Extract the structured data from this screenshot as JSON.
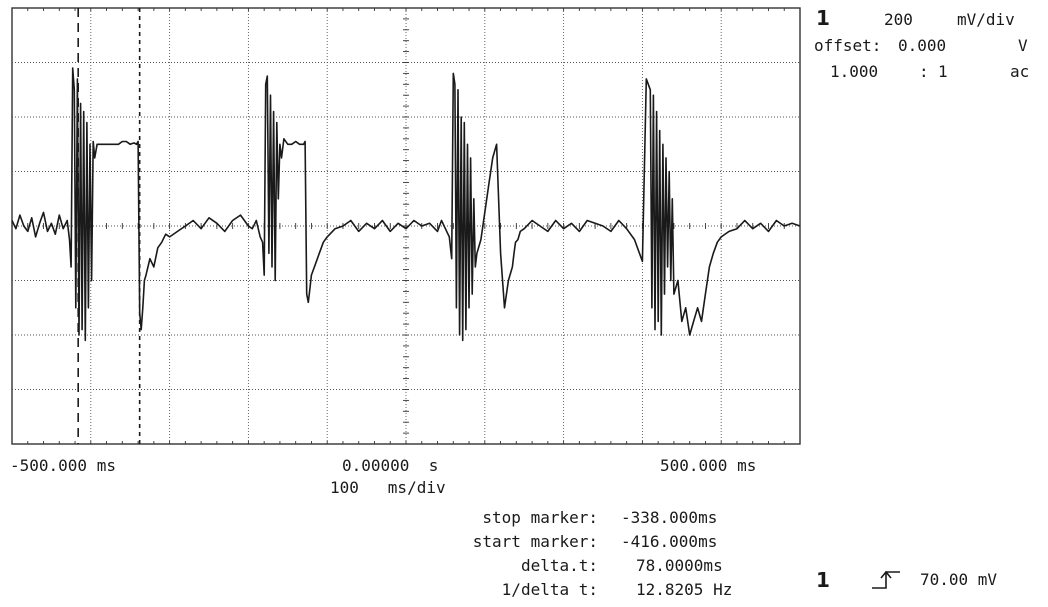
{
  "channel": {
    "number": "1",
    "scale": "200",
    "scale_unit": "mV/div",
    "offset_label": "offset:",
    "offset_value": "0.000",
    "offset_unit": "V",
    "probe_ratio": "1.000",
    "probe_sep": ":",
    "probe_ratio_to": "1",
    "coupling": "ac"
  },
  "timebase": {
    "left_label": "-500.000 ms",
    "center_label": "0.00000  s",
    "right_label": "500.000 ms",
    "per_div": "100   ms/div"
  },
  "markers": {
    "stop_label": "stop marker:",
    "stop_value": "-338.000ms",
    "start_label": "start marker:",
    "start_value": "-416.000ms",
    "delta_label": "delta.t:",
    "delta_value": "78.0000ms",
    "inv_label": "1/delta t:",
    "inv_value": "12.8205 Hz"
  },
  "trigger": {
    "channel": "1",
    "level": "70.00 mV"
  },
  "chart_data": {
    "type": "line",
    "xlim": [
      -500,
      500
    ],
    "ylim": [
      -800,
      800
    ],
    "grid": true,
    "start_marker_x": -416,
    "stop_marker_x": -338,
    "series": [
      {
        "x": [
          -500,
          -495,
          -490,
          -485,
          -480,
          -475,
          -470,
          -465,
          -460,
          -455,
          -450,
          -445,
          -440,
          -435,
          -430,
          -427,
          -425,
          -423,
          -421,
          -419,
          -417,
          -415,
          -413,
          -411,
          -409,
          -407,
          -405,
          -403,
          -401,
          -399,
          -397,
          -395,
          -392,
          -390,
          -385,
          -380,
          -375,
          -370,
          -365,
          -360,
          -355,
          -350,
          -345,
          -342,
          -340,
          -338,
          -336,
          -334,
          -332,
          -330,
          -325,
          -320,
          -315,
          -310,
          -305,
          -300,
          -290,
          -280,
          -270,
          -260,
          -250,
          -240,
          -230,
          -220,
          -210,
          -200,
          -195,
          -190,
          -185,
          -182,
          -180,
          -178,
          -176,
          -174,
          -172,
          -170,
          -168,
          -166,
          -164,
          -162,
          -160,
          -158,
          -155,
          -150,
          -145,
          -140,
          -135,
          -130,
          -128,
          -126,
          -124,
          -122,
          -120,
          -115,
          -110,
          -105,
          -100,
          -90,
          -80,
          -70,
          -60,
          -50,
          -40,
          -30,
          -20,
          -10,
          0,
          10,
          20,
          30,
          40,
          45,
          50,
          55,
          58,
          60,
          62,
          64,
          66,
          68,
          70,
          72,
          74,
          76,
          78,
          80,
          82,
          84,
          86,
          88,
          90,
          95,
          100,
          105,
          110,
          115,
          120,
          125,
          130,
          135,
          137,
          139,
          142,
          145,
          150,
          160,
          170,
          180,
          190,
          200,
          210,
          220,
          230,
          240,
          250,
          260,
          270,
          280,
          290,
          300,
          305,
          310,
          312,
          314,
          316,
          318,
          320,
          322,
          324,
          326,
          328,
          330,
          332,
          334,
          336,
          338,
          340,
          345,
          350,
          355,
          360,
          365,
          370,
          375,
          380,
          385,
          390,
          395,
          400,
          410,
          420,
          430,
          440,
          450,
          460,
          470,
          480,
          490,
          500
        ],
        "y": [
          20,
          -10,
          40,
          0,
          -20,
          30,
          -40,
          10,
          50,
          -20,
          10,
          -30,
          40,
          -10,
          20,
          -50,
          -150,
          580,
          500,
          -300,
          540,
          -400,
          450,
          -380,
          420,
          -420,
          380,
          -300,
          300,
          -200,
          310,
          250,
          300,
          300,
          300,
          300,
          300,
          300,
          300,
          310,
          310,
          300,
          305,
          300,
          310,
          -320,
          -380,
          -300,
          -200,
          -180,
          -120,
          -150,
          -80,
          -60,
          -30,
          -40,
          -20,
          0,
          20,
          -10,
          30,
          10,
          -20,
          20,
          40,
          0,
          -10,
          20,
          -40,
          -60,
          -180,
          520,
          550,
          -100,
          480,
          -150,
          420,
          -200,
          380,
          100,
          300,
          250,
          320,
          300,
          300,
          310,
          300,
          300,
          310,
          -250,
          -280,
          -230,
          -180,
          -140,
          -100,
          -60,
          -40,
          -10,
          0,
          20,
          -20,
          10,
          -10,
          20,
          -20,
          10,
          -10,
          20,
          0,
          10,
          -20,
          20,
          -10,
          -40,
          -120,
          560,
          520,
          -300,
          500,
          -400,
          400,
          -420,
          380,
          -380,
          300,
          -300,
          250,
          -250,
          100,
          -150,
          -100,
          -50,
          50,
          150,
          250,
          300,
          -100,
          -300,
          -200,
          -150,
          -100,
          -60,
          -50,
          -20,
          -10,
          20,
          0,
          -20,
          20,
          -10,
          10,
          -20,
          20,
          10,
          0,
          -20,
          20,
          -10,
          -50,
          -130,
          540,
          500,
          -300,
          480,
          -380,
          420,
          -350,
          350,
          -400,
          300,
          -250,
          250,
          -150,
          200,
          -200,
          100,
          -250,
          -200,
          -350,
          -300,
          -400,
          -350,
          -300,
          -350,
          -250,
          -150,
          -100,
          -60,
          -40,
          -20,
          -10,
          20,
          -10,
          10,
          -20,
          20,
          0,
          10,
          0
        ]
      }
    ]
  }
}
